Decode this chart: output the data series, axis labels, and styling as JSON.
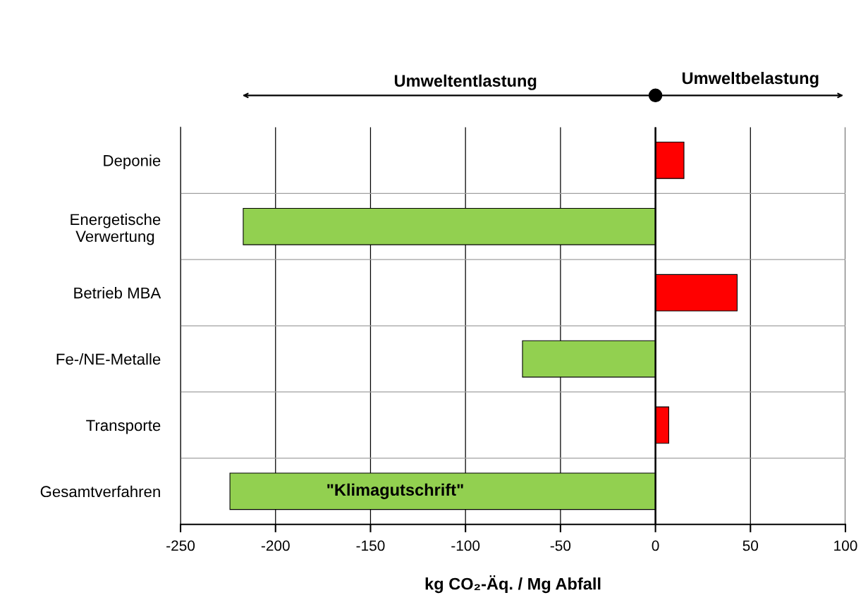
{
  "chart_data": {
    "type": "bar",
    "orientation": "horizontal",
    "categories": [
      "Deponie",
      "Energetische\nVerwertung",
      "Betrieb MBA",
      "Fe-/NE-Metalle",
      "Transporte",
      "Gesamtverfahren"
    ],
    "values": [
      15,
      -217,
      43,
      -70,
      7,
      -224
    ],
    "colors": [
      "#ff0000",
      "#92d050",
      "#ff0000",
      "#92d050",
      "#ff0000",
      "#92d050"
    ],
    "xlim": [
      -250,
      100
    ],
    "xticks": [
      -250,
      -200,
      -150,
      -100,
      -50,
      0,
      50,
      100
    ],
    "xlabel": "kg CO₂-Äq. / Mg Abfall",
    "grid": true,
    "annotations": [
      "Umweltentlastung",
      "Umweltbelastung",
      "\"Klimagutschrift\""
    ]
  }
}
